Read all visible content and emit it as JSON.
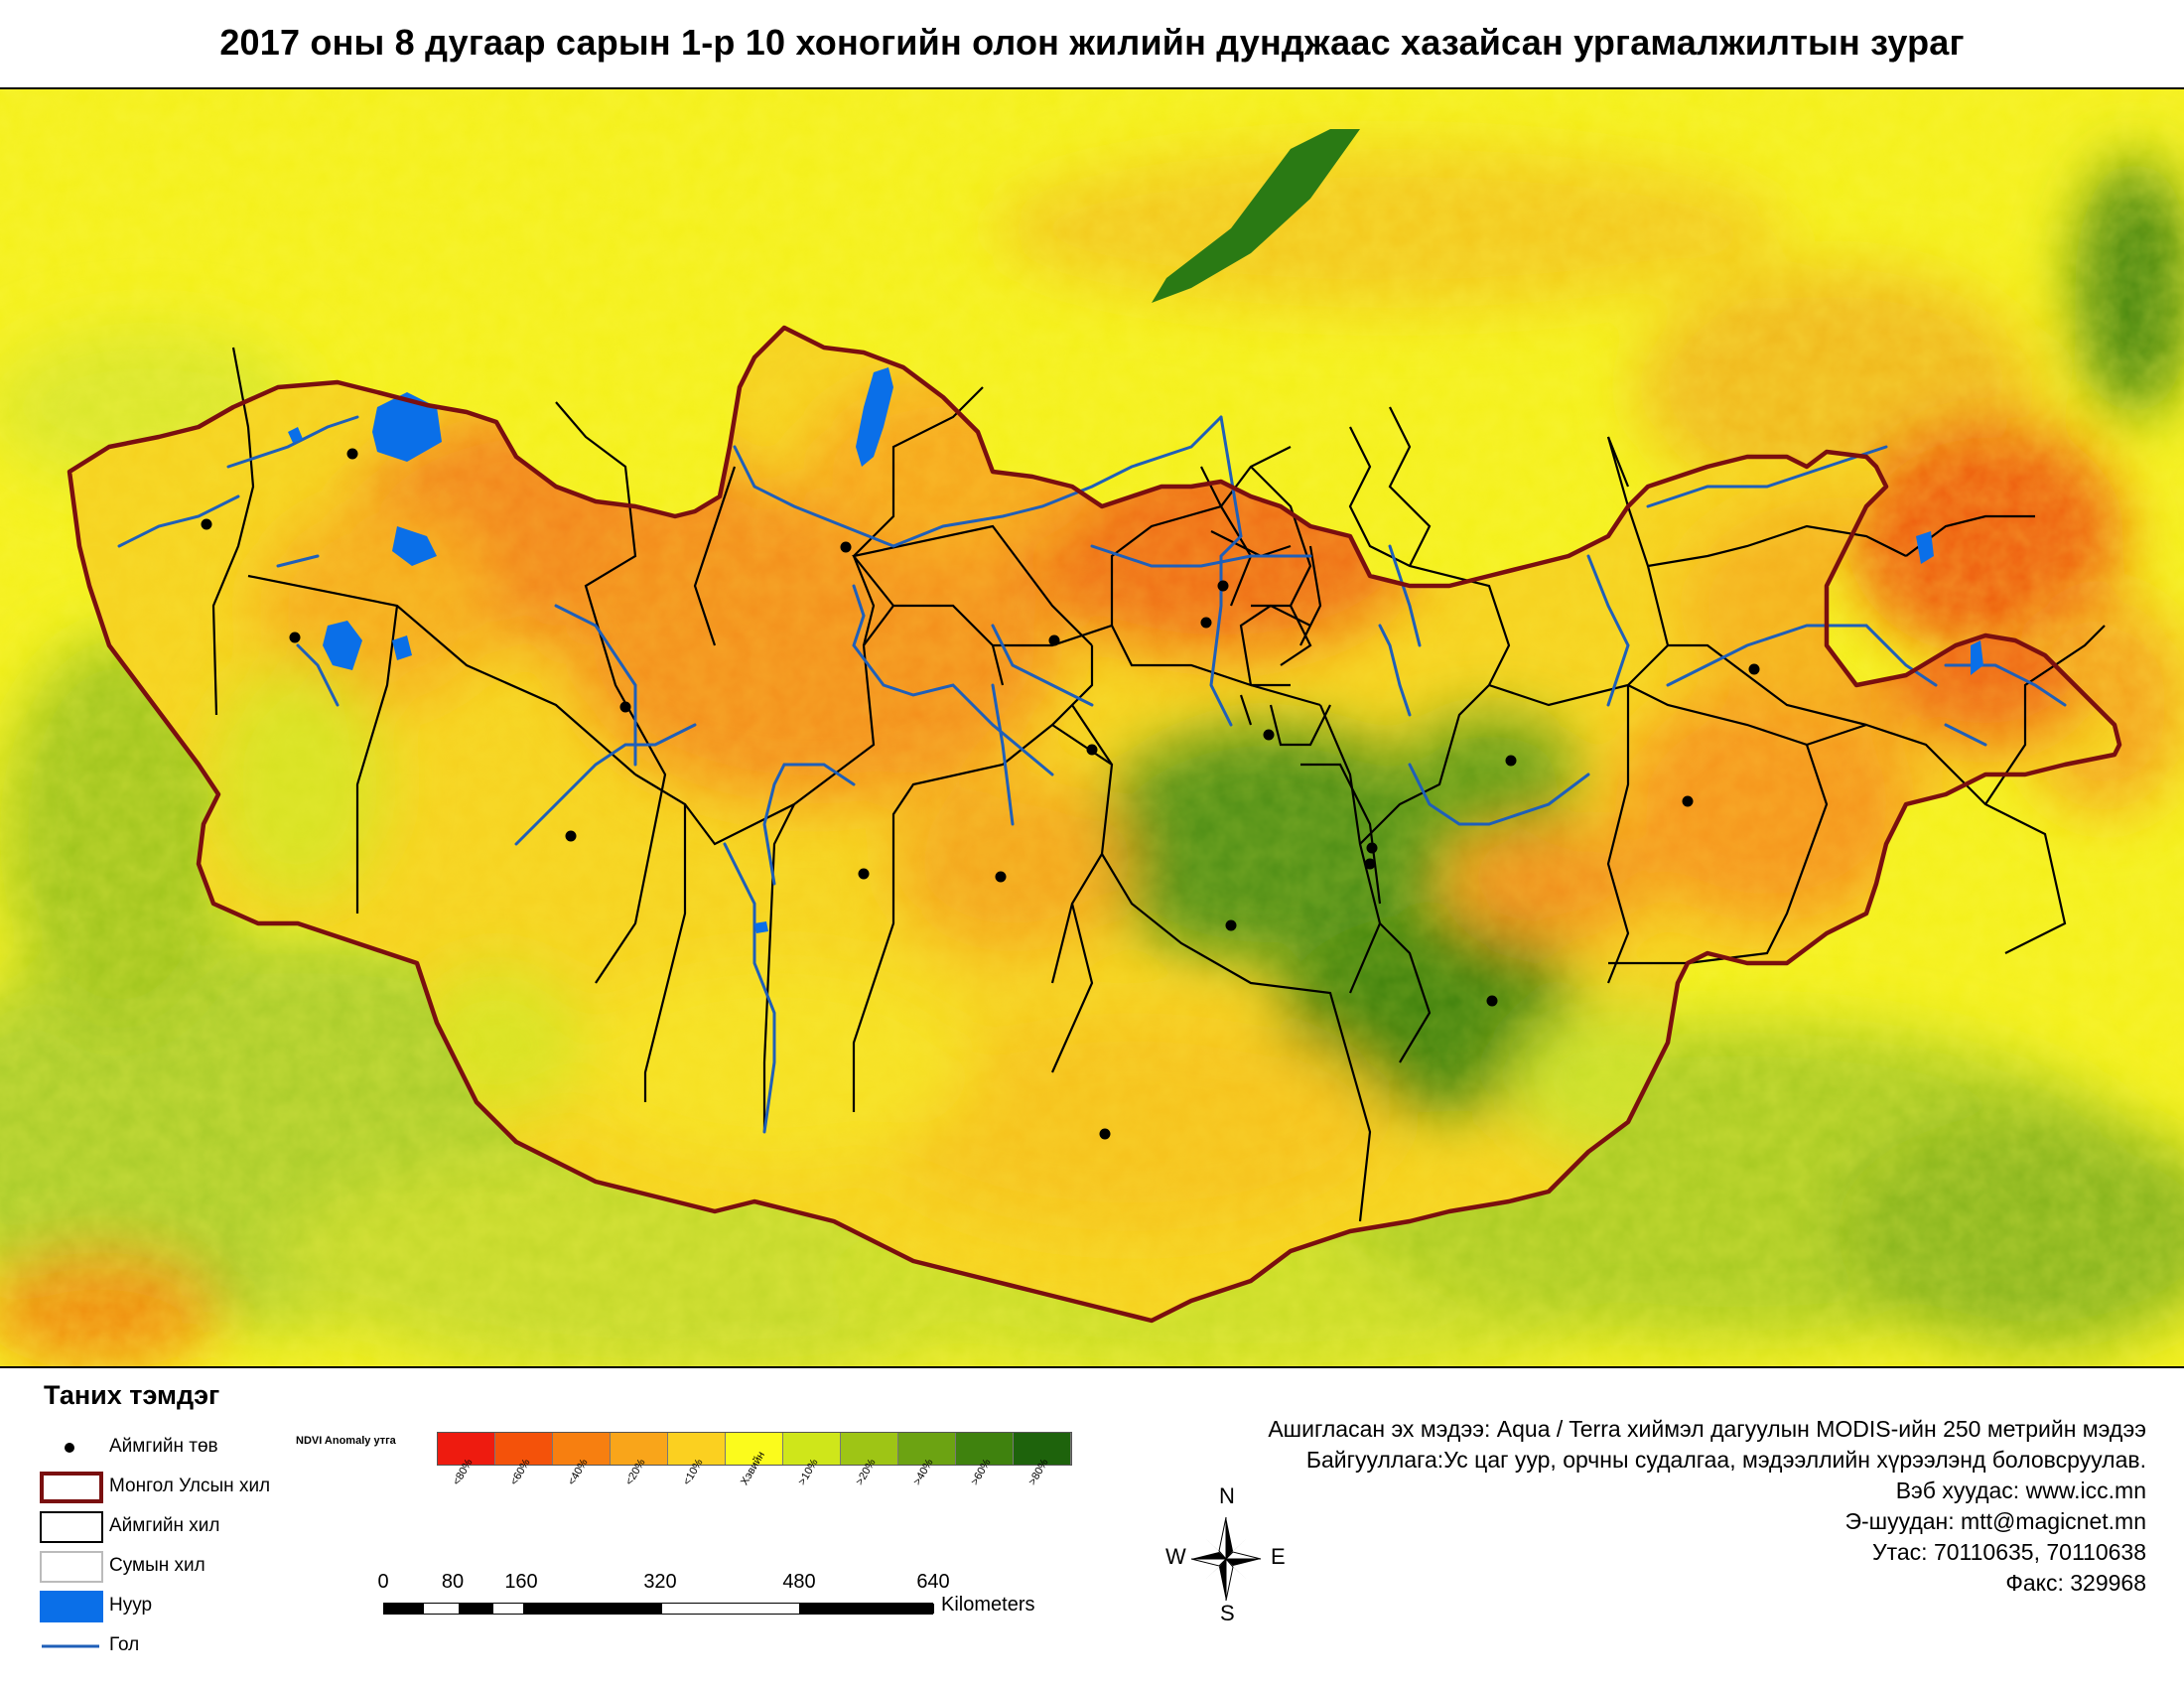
{
  "title": "2017 оны 8 дугаар сарын 1-р 10 хоногийн олон жилийн дунджаас хазайсан ургамалжилтын зураг",
  "legend": {
    "title": "Таних тэмдэг",
    "items": [
      {
        "label": "Аймгийн төв",
        "symbol": "dot",
        "color": "#000000"
      },
      {
        "label": "Монгол Улсын хил",
        "symbol": "box",
        "color": "#7a0f0f"
      },
      {
        "label": "Аймгийн хил",
        "symbol": "box",
        "color": "#000000"
      },
      {
        "label": "Сумын хил",
        "symbol": "box",
        "color": "#bbbbbb"
      },
      {
        "label": "Нуур",
        "symbol": "fill",
        "color": "#0a6fe8"
      },
      {
        "label": "Гол",
        "symbol": "line",
        "color": "#1f5fb8"
      }
    ]
  },
  "anomaly": {
    "title": "NDVI Anomaly утга",
    "classes": [
      {
        "label": "<80%",
        "color": "#ee1b0f"
      },
      {
        "label": "<60%",
        "color": "#f4520a"
      },
      {
        "label": "<40%",
        "color": "#f77f10"
      },
      {
        "label": "<20%",
        "color": "#f9a51a"
      },
      {
        "label": "<10%",
        "color": "#fbd020"
      },
      {
        "label": "Хэвийн",
        "color": "#fbfb1c"
      },
      {
        "label": ">10%",
        "color": "#cfe61a"
      },
      {
        "label": ">20%",
        "color": "#9ec515"
      },
      {
        "label": ">40%",
        "color": "#6ca312"
      },
      {
        "label": ">60%",
        "color": "#3f820e"
      },
      {
        "label": ">80%",
        "color": "#1e630c"
      }
    ]
  },
  "scale": {
    "ticks": [
      "0",
      "80",
      "160",
      "320",
      "480",
      "640"
    ],
    "unit": "Kilometers"
  },
  "compass": {
    "n": "N",
    "s": "S",
    "e": "E",
    "w": "W"
  },
  "info": [
    "Ашигласан эх мэдээ: Aqua / Terra хиймэл дагуулын MODIS-ийн 250 метрийн мэдээ",
    "Байгууллага:Ус цаг уур, орчны судалгаа, мэдээллийн хүрээлэнд боловсруулав.",
    "Вэб хуудас: www.icc.mn",
    "Э-шуудан: mtt@magicnet.mn",
    "Утас: 70110635, 70110638",
    "Факс: 329968"
  ],
  "map": {
    "border_color": "#7a0f0f",
    "province_border_color": "#000000",
    "lake_color": "#0a6fe8",
    "river_color": "#1f5fb8"
  }
}
